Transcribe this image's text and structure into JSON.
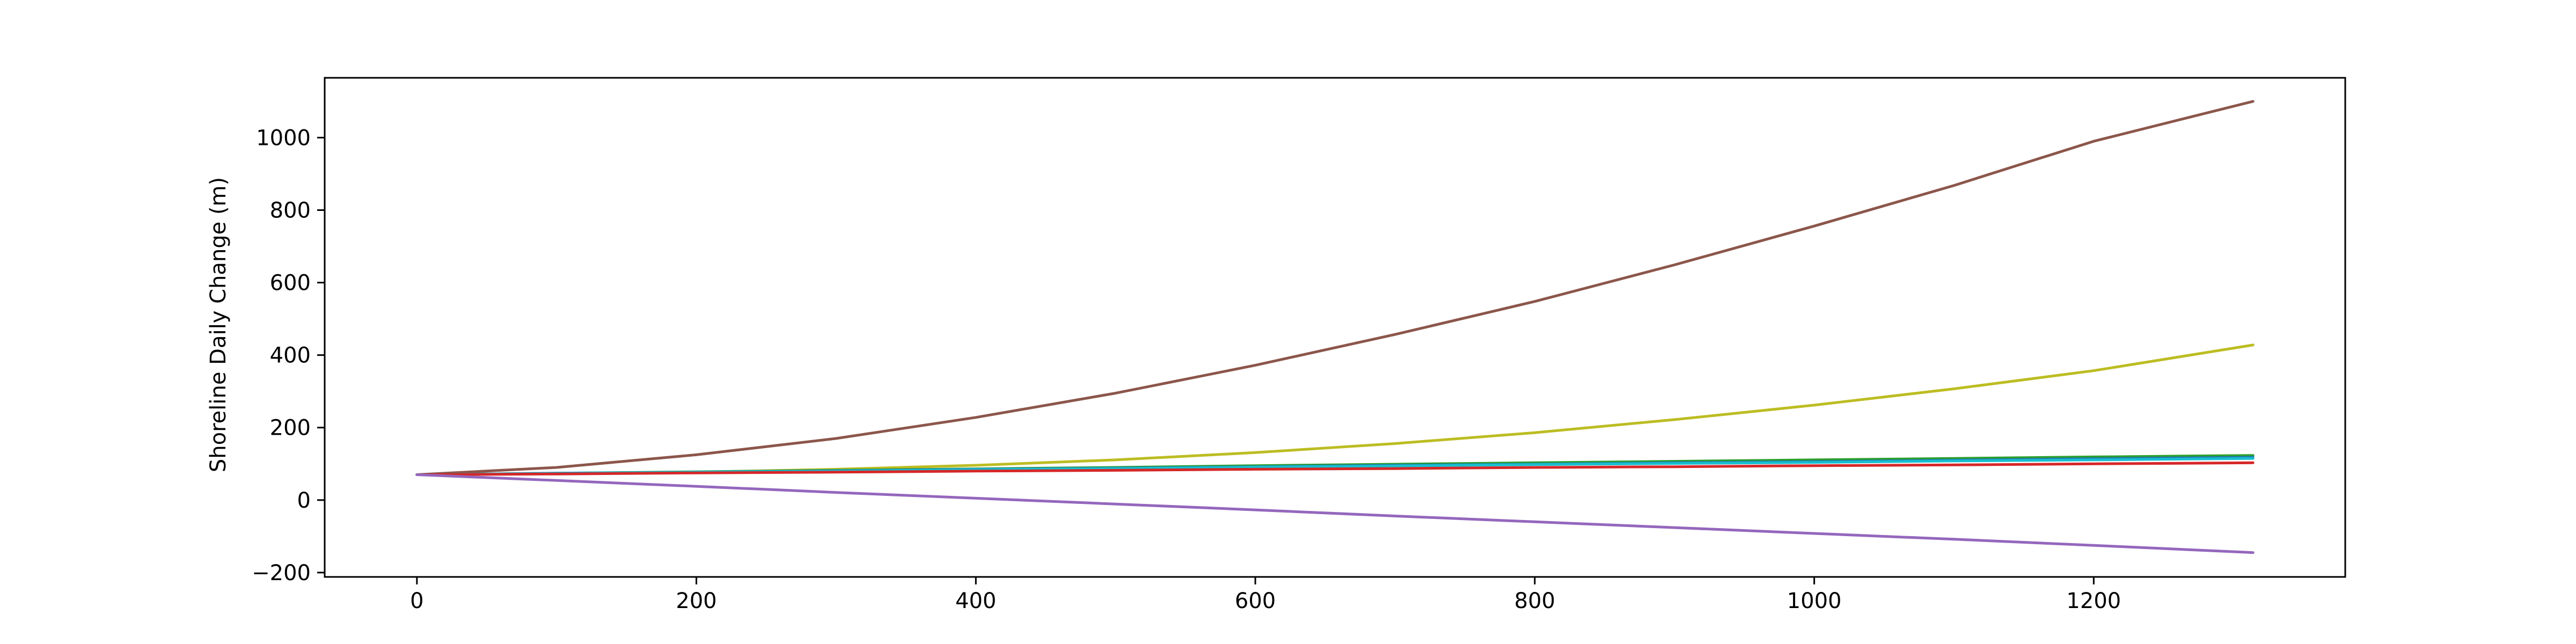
{
  "chart_data": {
    "type": "line",
    "title": "",
    "xlabel": "",
    "ylabel": "Shoreline Daily Change (m)",
    "xlim": [
      -66,
      1380
    ],
    "ylim": [
      -212,
      1165
    ],
    "xticks": [
      0,
      200,
      400,
      600,
      800,
      1000,
      1200
    ],
    "yticks": [
      -200,
      0,
      200,
      400,
      600,
      800,
      1000
    ],
    "x": [
      0,
      100,
      200,
      300,
      400,
      500,
      600,
      700,
      800,
      900,
      1000,
      1100,
      1200,
      1314
    ],
    "grid": false,
    "legend": "none",
    "series": [
      {
        "color": "#8c564b",
        "values": [
          70,
          90,
          125,
          170,
          228,
          295,
          372,
          457,
          548,
          649,
          756,
          868,
          990,
          1100
        ]
      },
      {
        "color": "#bcbd22",
        "values": [
          70,
          73,
          77,
          85,
          96,
          111,
          131,
          156,
          186,
          222,
          262,
          307,
          357,
          428
        ]
      },
      {
        "color": "#2ca02c",
        "values": [
          70,
          74,
          78,
          82,
          86,
          90,
          95,
          99,
          103,
          107,
          111,
          115,
          119,
          123
        ]
      },
      {
        "color": "#1f77b4",
        "values": [
          70,
          74,
          77,
          81,
          85,
          88,
          92,
          96,
          99,
          103,
          106,
          110,
          114,
          118
        ]
      },
      {
        "color": "#17becf",
        "values": [
          70,
          73,
          77,
          80,
          84,
          87,
          91,
          94,
          98,
          101,
          104,
          108,
          111,
          115
        ]
      },
      {
        "color": "#d62728",
        "values": [
          70,
          72,
          75,
          77,
          80,
          82,
          85,
          87,
          90,
          92,
          95,
          97,
          100,
          103
        ]
      },
      {
        "color": "#9467bd",
        "values": [
          70,
          54,
          38,
          21,
          5,
          -11,
          -27,
          -44,
          -60,
          -76,
          -92,
          -108,
          -125,
          -145
        ]
      }
    ]
  }
}
